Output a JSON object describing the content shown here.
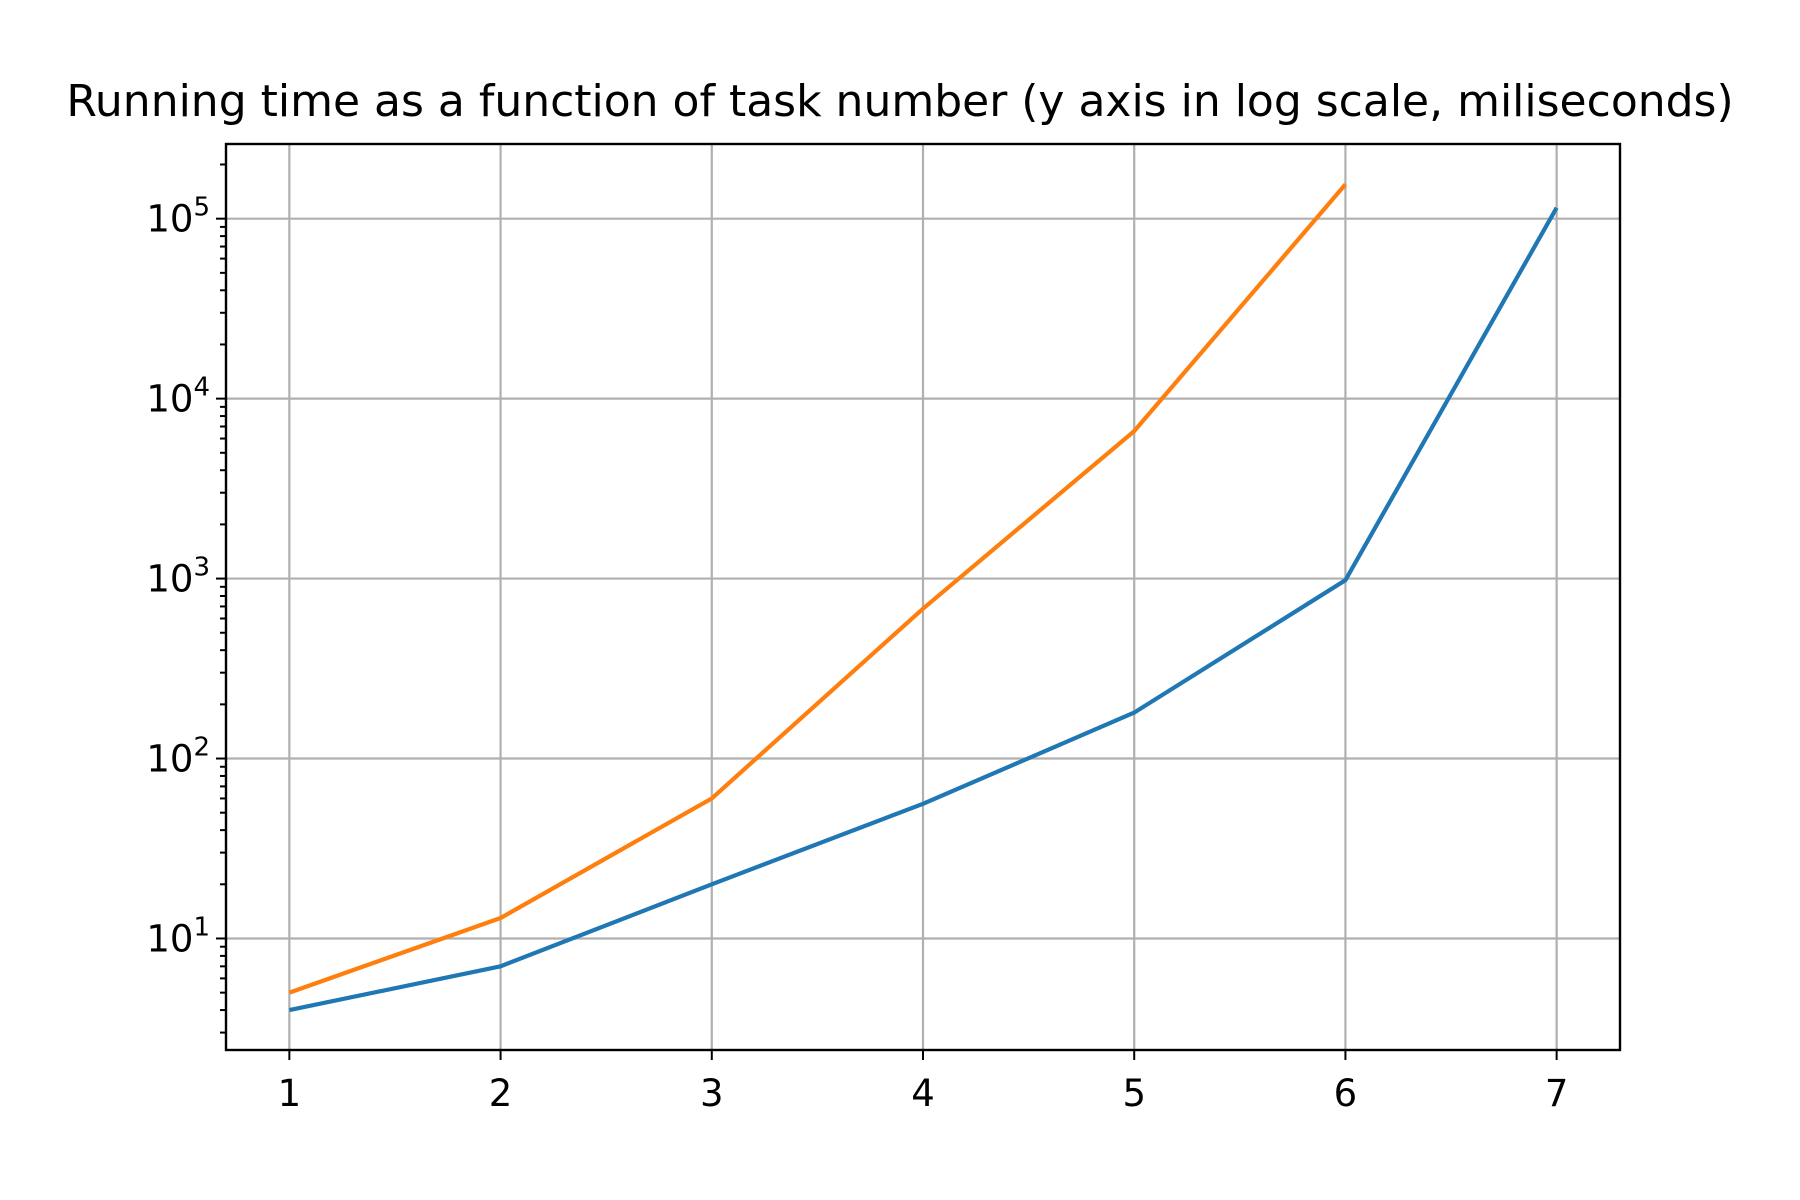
{
  "chart_data": {
    "type": "line",
    "title": "Running time as a function of task number (y axis in log scale, miliseconds)",
    "xlabel": "",
    "ylabel": "",
    "x_ticks": [
      "1",
      "2",
      "3",
      "4",
      "5",
      "6",
      "7"
    ],
    "y_scale": "log",
    "y_ticks": [
      {
        "value": 10,
        "base": "10",
        "exp": "1"
      },
      {
        "value": 100,
        "base": "10",
        "exp": "2"
      },
      {
        "value": 1000,
        "base": "10",
        "exp": "3"
      },
      {
        "value": 10000,
        "base": "10",
        "exp": "4"
      },
      {
        "value": 100000,
        "base": "10",
        "exp": "5"
      }
    ],
    "xlim": [
      0.7,
      7.3
    ],
    "ylim": [
      2.4,
      260000
    ],
    "grid": true,
    "series": [
      {
        "color": "#1f77b4",
        "x": [
          1,
          2,
          3,
          4,
          5,
          6,
          7
        ],
        "y": [
          4,
          7,
          20,
          56,
          180,
          980,
          115000
        ]
      },
      {
        "color": "#ff7f0e",
        "x": [
          1,
          2,
          3,
          4,
          5,
          6
        ],
        "y": [
          5,
          13,
          60,
          680,
          6600,
          155000
        ]
      }
    ]
  }
}
